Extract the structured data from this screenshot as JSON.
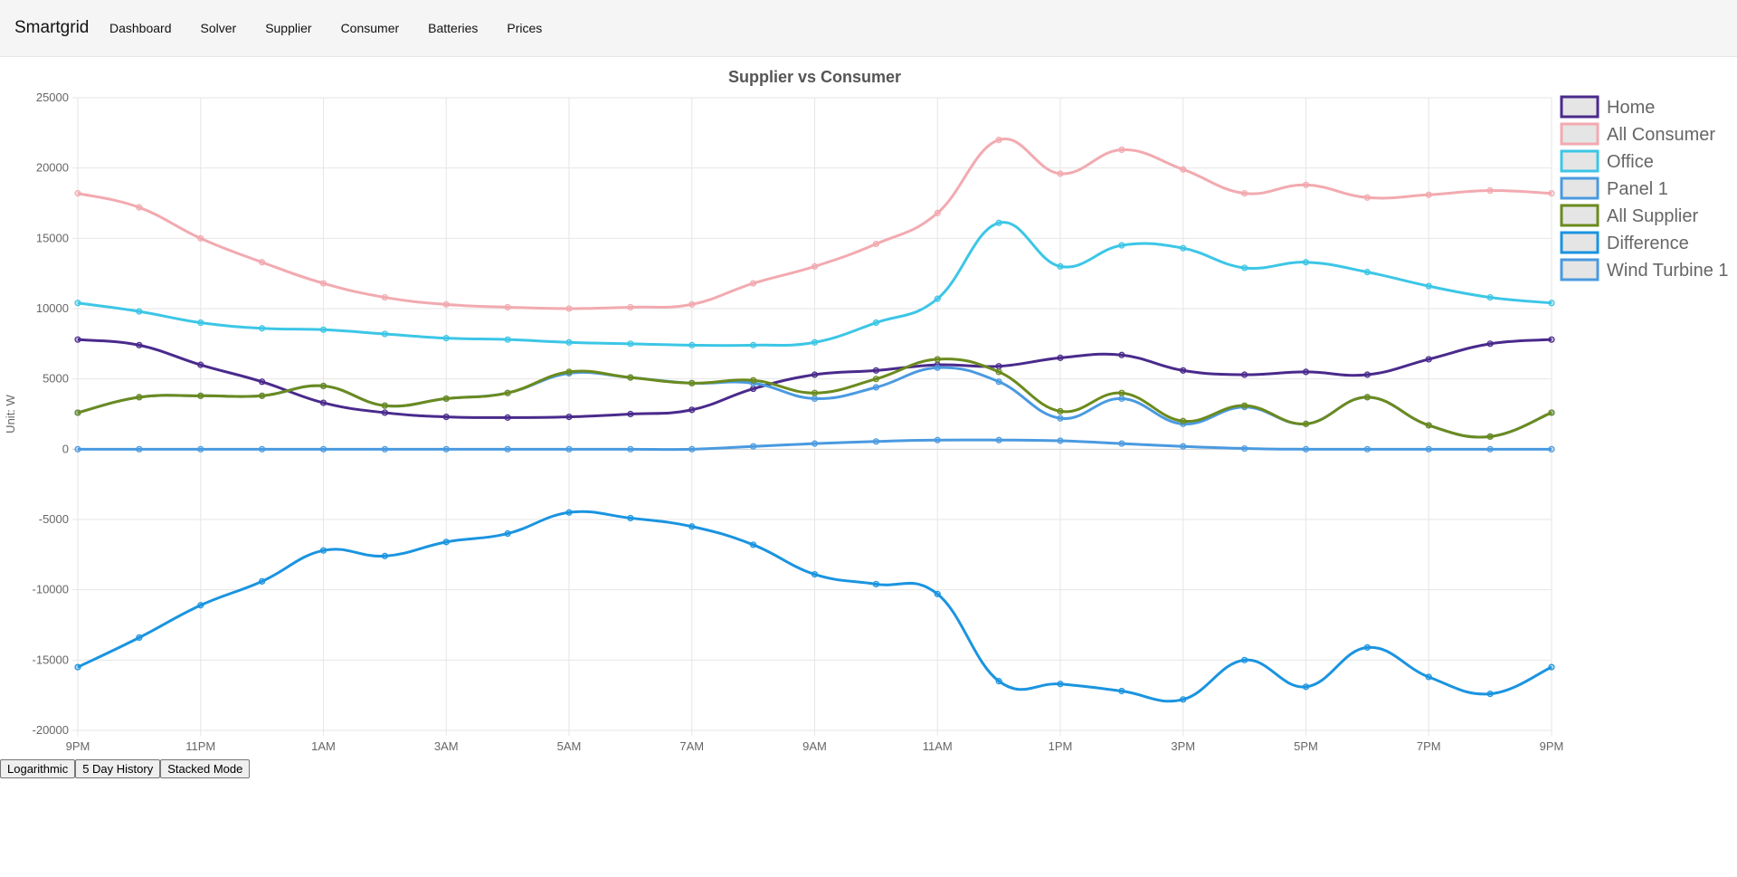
{
  "navbar": {
    "brand": "Smartgrid",
    "links": [
      "Dashboard",
      "Solver",
      "Supplier",
      "Consumer",
      "Batteries",
      "Prices"
    ]
  },
  "controls": {
    "logarithmic": "Logarithmic",
    "history": "5 Day History",
    "stacked": "Stacked Mode"
  },
  "chart_data": {
    "type": "line",
    "title": "Supplier vs Consumer",
    "ylabel": "Unit: W",
    "xlabel": "",
    "ylim": [
      -20000,
      25000
    ],
    "yticks": [
      25000,
      20000,
      15000,
      10000,
      5000,
      0,
      -5000,
      -10000,
      -15000,
      -20000
    ],
    "x_tick_labels": [
      "9PM",
      "11PM",
      "1AM",
      "3AM",
      "5AM",
      "7AM",
      "9AM",
      "11AM",
      "1PM",
      "3PM",
      "5PM",
      "7PM",
      "9PM"
    ],
    "x_hours": [
      "9PM",
      "10PM",
      "11PM",
      "12AM",
      "1AM",
      "2AM",
      "3AM",
      "4AM",
      "5AM",
      "6AM",
      "7AM",
      "8AM",
      "9AM",
      "10AM",
      "11AM",
      "12PM",
      "1PM",
      "2PM",
      "3PM",
      "4PM",
      "5PM",
      "6PM",
      "7PM",
      "8PM",
      "9PM"
    ],
    "grid": true,
    "legend_position": "right",
    "series": [
      {
        "name": "Home",
        "color": "#4a2a8c",
        "values": [
          7800,
          7400,
          6000,
          4800,
          3300,
          2600,
          2300,
          2250,
          2300,
          2500,
          2800,
          4300,
          5300,
          5600,
          6000,
          5900,
          6500,
          6700,
          5600,
          5300,
          5500,
          5300,
          6400,
          7500,
          7800
        ]
      },
      {
        "name": "All Consumer",
        "color": "#f2aab0",
        "values": [
          18200,
          17200,
          15000,
          13300,
          11800,
          10800,
          10300,
          10100,
          10000,
          10100,
          10300,
          11800,
          13000,
          14600,
          16800,
          22000,
          19600,
          21300,
          19900,
          18200,
          18800,
          17900,
          18100,
          18400,
          18200
        ]
      },
      {
        "name": "Office",
        "color": "#3cc6e6",
        "values": [
          10400,
          9800,
          9000,
          8600,
          8500,
          8200,
          7900,
          7800,
          7600,
          7500,
          7400,
          7400,
          7600,
          9000,
          10700,
          16100,
          13000,
          14500,
          14300,
          12900,
          13300,
          12600,
          11600,
          10800,
          10400
        ]
      },
      {
        "name": "Panel 1",
        "color": "#4a9ae0",
        "values": [
          2600,
          3700,
          3800,
          3800,
          4500,
          3100,
          3600,
          4000,
          5400,
          5100,
          4700,
          4700,
          3600,
          4400,
          5800,
          4800,
          2200,
          3600,
          1800,
          3000,
          1800,
          3700,
          1700,
          900,
          2600
        ]
      },
      {
        "name": "All Supplier",
        "color": "#6b8a1e",
        "values": [
          2600,
          3700,
          3800,
          3800,
          4500,
          3100,
          3600,
          4000,
          5500,
          5100,
          4700,
          4900,
          4000,
          5000,
          6400,
          5500,
          2700,
          4000,
          2000,
          3100,
          1800,
          3700,
          1700,
          900,
          2600
        ]
      },
      {
        "name": "Difference",
        "color": "#1a94e0",
        "values": [
          -15500,
          -13400,
          -11100,
          -9400,
          -7200,
          -7600,
          -6600,
          -6000,
          -4500,
          -4900,
          -5500,
          -6800,
          -8900,
          -9600,
          -10300,
          -16500,
          -16700,
          -17200,
          -17800,
          -15000,
          -16900,
          -14100,
          -16200,
          -17400,
          -15500
        ]
      },
      {
        "name": "Wind Turbine 1",
        "color": "#4a9ae0",
        "values": [
          0,
          0,
          0,
          0,
          0,
          0,
          0,
          0,
          0,
          0,
          0,
          200,
          400,
          550,
          650,
          650,
          600,
          400,
          200,
          50,
          0,
          0,
          0,
          0,
          0
        ]
      }
    ]
  }
}
